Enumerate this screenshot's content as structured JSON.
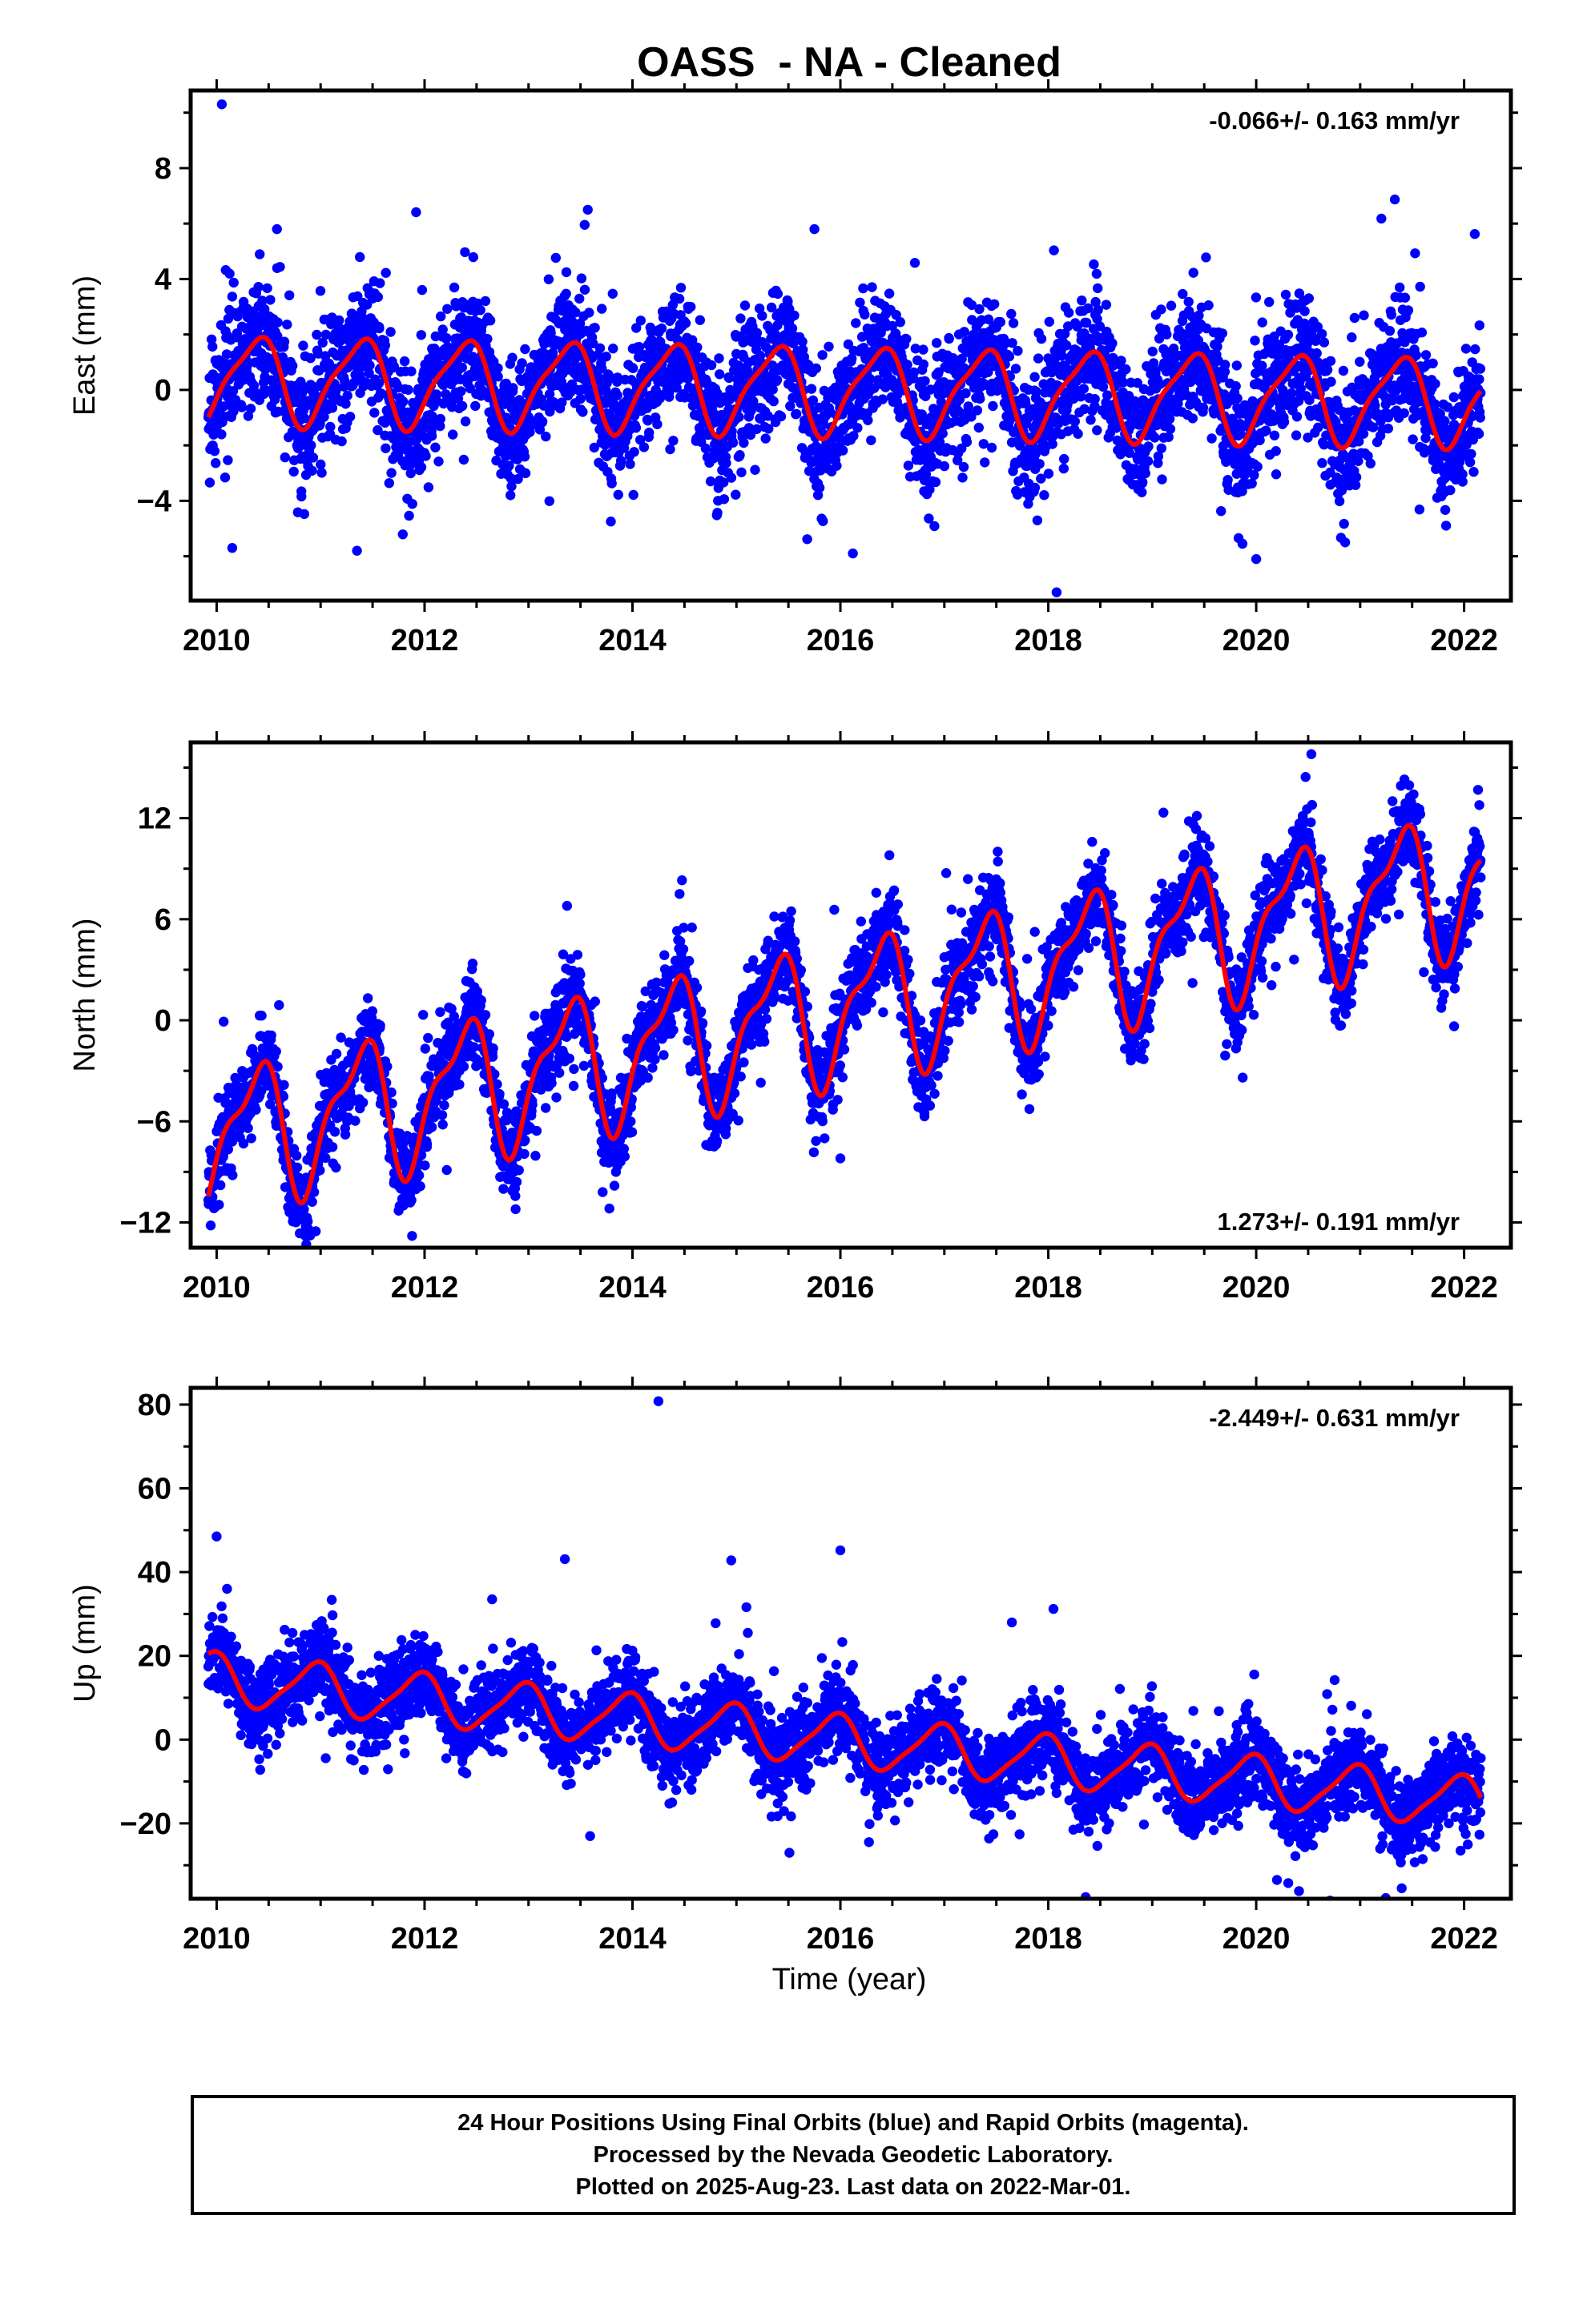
{
  "title": "OASS  - NA - Cleaned",
  "xlabel": "Time (year)",
  "footer": {
    "lines": [
      "24 Hour Positions Using Final Orbits (blue) and Rapid Orbits (magenta).",
      "Processed by the Nevada Geodetic Laboratory.",
      "Plotted on 2025-Aug-23. Last data on 2022-Mar-01."
    ]
  },
  "colors": {
    "data": "#0000ff",
    "model": "#ff0000",
    "frame": "#000000"
  },
  "chart_data": [
    {
      "type": "scatter",
      "name": "east",
      "ylabel": "East (mm)",
      "rate_text": "-0.066+/- 0.163 mm/yr",
      "rate_position": "top-right",
      "xlim": [
        2009.75,
        2022.45
      ],
      "ylim": [
        -7.6,
        10.8
      ],
      "xticks": [
        2010,
        2012,
        2014,
        2016,
        2018,
        2020,
        2022
      ],
      "yticks": [
        -4,
        0,
        4,
        8
      ],
      "ytick_labels": [
        "−4",
        "0",
        "4",
        "8"
      ],
      "data_range": [
        2009.92,
        2022.16
      ],
      "model": {
        "offset": 0.4,
        "trend": -0.066,
        "annual_sin": 1.1,
        "annual_cos": -1.05,
        "semi_sin": 0.15,
        "semi_cos": 0.35
      },
      "scatter": {
        "noise": 1.1,
        "spread": 1.45
      },
      "outliers": [
        [
          2010.05,
          10.3
        ],
        [
          2013.57,
          6.5
        ],
        [
          2010.58,
          5.8
        ],
        [
          2015.75,
          5.8
        ],
        [
          2018.08,
          -7.3
        ],
        [
          2011.35,
          -5.8
        ],
        [
          2020.0,
          -6.1
        ],
        [
          2016.12,
          -5.9
        ],
        [
          2010.15,
          -5.7
        ]
      ]
    },
    {
      "type": "scatter",
      "name": "north",
      "ylabel": "North (mm)",
      "rate_text": "1.273+/- 0.191 mm/yr",
      "rate_position": "bottom-right",
      "xlim": [
        2009.75,
        2022.45
      ],
      "ylim": [
        -13.5,
        16.5
      ],
      "xticks": [
        2010,
        2012,
        2014,
        2016,
        2018,
        2020,
        2022
      ],
      "yticks": [
        -12,
        -6,
        0,
        6,
        12
      ],
      "ytick_labels": [
        "−12",
        "−6",
        "0",
        "6",
        "12"
      ],
      "data_range": [
        2009.92,
        2022.16
      ],
      "model": {
        "offset": -7.0,
        "trend": 1.273,
        "annual_sin": 2.8,
        "annual_cos": -2.5,
        "semi_sin": 0.6,
        "semi_cos": 1.3
      },
      "scatter": {
        "noise": 1.3,
        "spread": 1.55
      },
      "outliers": [
        [
          2020.53,
          15.8
        ],
        [
          2010.6,
          0.9
        ],
        [
          2011.88,
          -12.8
        ],
        [
          2016.0,
          -8.2
        ]
      ]
    },
    {
      "type": "scatter",
      "name": "up",
      "ylabel": "Up (mm)",
      "rate_text": "-2.449+/- 0.631 mm/yr",
      "rate_position": "top-right",
      "xlim": [
        2009.75,
        2022.45
      ],
      "ylim": [
        -38,
        84
      ],
      "xticks": [
        2010,
        2012,
        2014,
        2016,
        2018,
        2020,
        2022
      ],
      "yticks": [
        -20,
        0,
        20,
        40,
        60,
        80
      ],
      "ytick_labels": [
        "−20",
        "0",
        "20",
        "40",
        "60",
        "80"
      ],
      "data_range": [
        2009.92,
        2022.16
      ],
      "model": {
        "offset": 14.5,
        "trend": -2.449,
        "annual_sin": -2.2,
        "annual_cos": 5.5,
        "semi_sin": 0.8,
        "semi_cos": 1.0
      },
      "scatter": {
        "noise": 4.8,
        "spread": 1.5
      },
      "outliers": [
        [
          2014.25,
          80.8
        ],
        [
          2010.0,
          48.5
        ],
        [
          2016.0,
          45.2
        ],
        [
          2013.35,
          43.1
        ],
        [
          2014.95,
          42.8
        ],
        [
          2010.1,
          36.0
        ],
        [
          2012.65,
          33.5
        ],
        [
          2018.05,
          31.2
        ],
        [
          2014.8,
          27.8
        ],
        [
          2017.65,
          28.0
        ],
        [
          2021.4,
          -35.5
        ],
        [
          2020.2,
          -33.5
        ]
      ]
    }
  ]
}
